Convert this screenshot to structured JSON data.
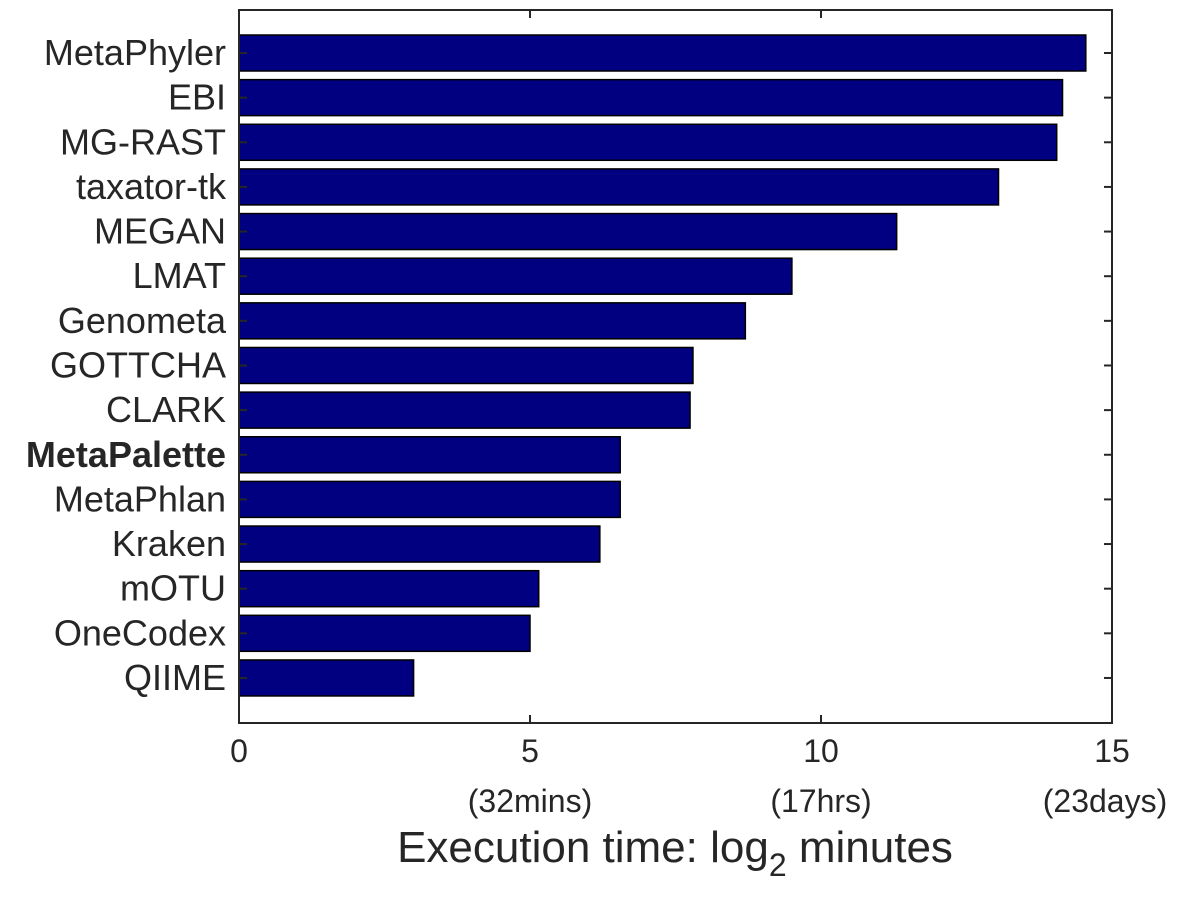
{
  "chart_data": {
    "type": "bar",
    "orientation": "horizontal",
    "categories": [
      "MetaPhyler",
      "EBI",
      "MG-RAST",
      "taxator-tk",
      "MEGAN",
      "LMAT",
      "Genometa",
      "GOTTCHA",
      "CLARK",
      "MetaPalette",
      "MetaPhlan",
      "Kraken",
      "mOTU",
      "OneCodex",
      "QIIME"
    ],
    "highlighted_category": "MetaPalette",
    "values": [
      14.55,
      14.15,
      14.05,
      13.05,
      11.3,
      9.5,
      8.7,
      7.8,
      7.75,
      6.55,
      6.55,
      6.2,
      5.15,
      5.0,
      3.0
    ],
    "xlim": [
      0,
      15
    ],
    "x_ticks": [
      "0",
      "5",
      "10",
      "15"
    ],
    "x_tick_sublabels": [
      "",
      "(32mins)",
      "(17hrs)",
      "(23days)"
    ],
    "xlabel": {
      "main": "Execution time: log",
      "subscript": "2",
      "suffix": " minutes"
    },
    "title": "",
    "ylabel": "",
    "grid": false,
    "bar_color": "#000080"
  }
}
